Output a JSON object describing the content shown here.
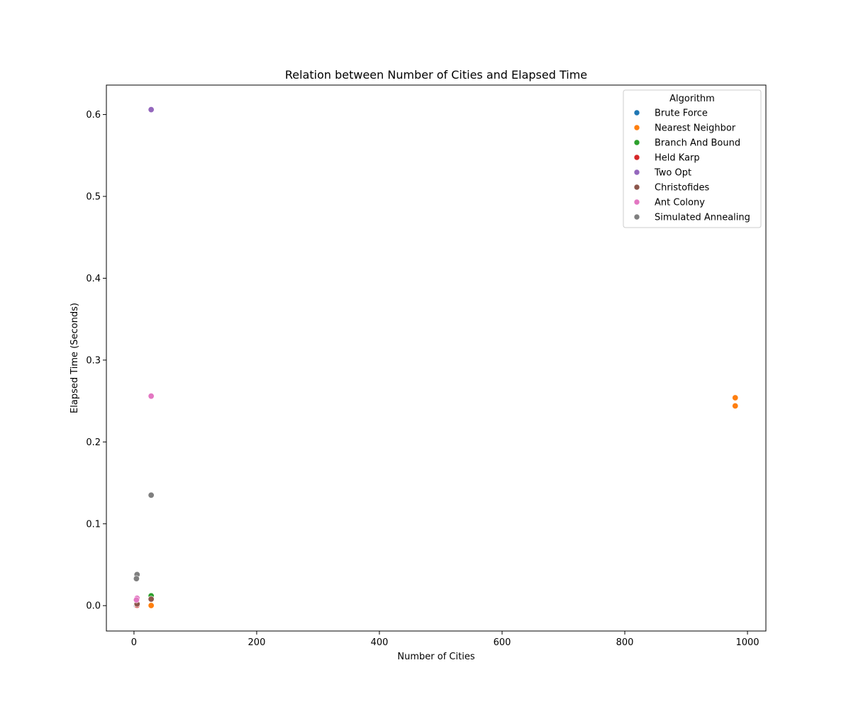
{
  "chart_data": {
    "type": "scatter",
    "title": "Relation between Number of Cities and Elapsed Time",
    "xlabel": "Number of Cities",
    "ylabel": "Elapsed Time (Seconds)",
    "xlim": [
      -45,
      1030
    ],
    "ylim": [
      -0.031,
      0.636
    ],
    "xticks": [
      0,
      200,
      400,
      600,
      800,
      1000
    ],
    "yticks": [
      0.0,
      0.1,
      0.2,
      0.3,
      0.4,
      0.5,
      0.6
    ],
    "xtick_labels": [
      "0",
      "200",
      "400",
      "600",
      "800",
      "1000"
    ],
    "ytick_labels": [
      "0.0",
      "0.1",
      "0.2",
      "0.3",
      "0.4",
      "0.5",
      "0.6"
    ],
    "grid": false,
    "legend": {
      "title": "Algorithm",
      "position": "top-right"
    },
    "series": [
      {
        "name": "Brute Force",
        "color": "#1f77b4",
        "points": [
          [
            5,
            0.0002
          ],
          [
            4,
            0.0001
          ]
        ]
      },
      {
        "name": "Nearest Neighbor",
        "color": "#ff7f0e",
        "points": [
          [
            5,
            0.0001
          ],
          [
            28,
            0.0002
          ],
          [
            980,
            0.254
          ],
          [
            980,
            0.244
          ]
        ]
      },
      {
        "name": "Branch And Bound",
        "color": "#2ca02c",
        "points": [
          [
            5,
            0.001
          ],
          [
            28,
            0.012
          ]
        ]
      },
      {
        "name": "Held Karp",
        "color": "#d62728",
        "points": [
          [
            5,
            0.0005
          ],
          [
            28,
            0.008
          ]
        ]
      },
      {
        "name": "Two Opt",
        "color": "#9467bd",
        "points": [
          [
            5,
            0.002
          ],
          [
            28,
            0.606
          ]
        ]
      },
      {
        "name": "Christofides",
        "color": "#8c564b",
        "points": [
          [
            5,
            0.002
          ],
          [
            28,
            0.008
          ]
        ]
      },
      {
        "name": "Ant Colony",
        "color": "#e377c2",
        "points": [
          [
            5,
            0.009
          ],
          [
            4,
            0.007
          ],
          [
            28,
            0.256
          ]
        ]
      },
      {
        "name": "Simulated Annealing",
        "color": "#7f7f7f",
        "points": [
          [
            5,
            0.038
          ],
          [
            4,
            0.033
          ],
          [
            28,
            0.135
          ]
        ]
      }
    ]
  }
}
